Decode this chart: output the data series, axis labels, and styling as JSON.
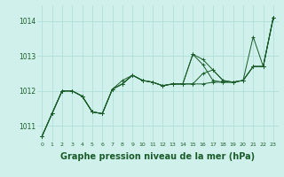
{
  "background_color": "#cff0eb",
  "grid_color": "#aaddd8",
  "line_color": "#1a5c2a",
  "marker_color": "#1a5c2a",
  "xlabel": "Graphe pression niveau de la mer (hPa)",
  "xlabel_fontsize": 7,
  "xlim": [
    -0.5,
    23.5
  ],
  "ylim": [
    1010.55,
    1014.45
  ],
  "yticks": [
    1011,
    1012,
    1013,
    1014
  ],
  "xticks": [
    0,
    1,
    2,
    3,
    4,
    5,
    6,
    7,
    8,
    9,
    10,
    11,
    12,
    13,
    14,
    15,
    16,
    17,
    18,
    19,
    20,
    21,
    22,
    23
  ],
  "series": [
    [
      1010.7,
      1011.35,
      1012.0,
      1012.0,
      1011.85,
      1011.4,
      1011.35,
      1012.05,
      1012.2,
      1012.45,
      1012.3,
      1012.25,
      1012.15,
      1012.2,
      1012.2,
      1013.05,
      1012.75,
      1012.3,
      1012.25,
      1012.25,
      1012.3,
      1012.7,
      1012.7,
      1014.1
    ],
    [
      1010.7,
      1011.35,
      1012.0,
      1012.0,
      1011.85,
      1011.4,
      1011.35,
      1012.05,
      1012.2,
      1012.45,
      1012.3,
      1012.25,
      1012.15,
      1012.2,
      1012.2,
      1012.2,
      1012.2,
      1012.25,
      1012.25,
      1012.25,
      1012.3,
      1012.7,
      1012.7,
      1014.1
    ],
    [
      1010.7,
      1011.35,
      1012.0,
      1012.0,
      1011.85,
      1011.4,
      1011.35,
      1012.05,
      1012.2,
      1012.45,
      1012.3,
      1012.25,
      1012.15,
      1012.2,
      1012.2,
      1012.2,
      1012.5,
      1012.6,
      1012.3,
      1012.25,
      1012.3,
      1013.55,
      1012.7,
      1014.1
    ],
    [
      1010.7,
      1011.35,
      1012.0,
      1012.0,
      1011.85,
      1011.4,
      1011.35,
      1012.05,
      1012.3,
      1012.45,
      1012.3,
      1012.25,
      1012.15,
      1012.2,
      1012.2,
      1013.05,
      1012.9,
      1012.6,
      1012.3,
      1012.25,
      1012.3,
      1012.7,
      1012.7,
      1014.1
    ]
  ]
}
